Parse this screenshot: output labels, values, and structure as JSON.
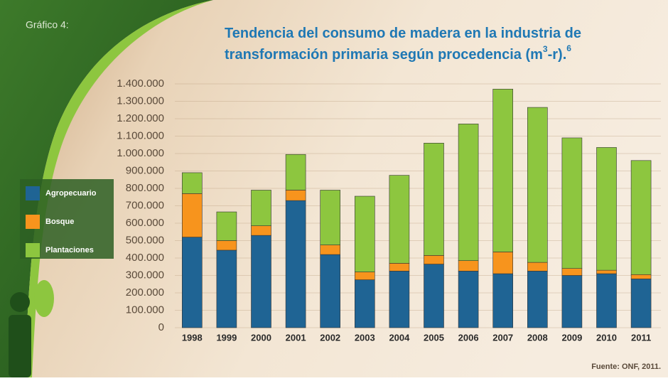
{
  "chart_data": {
    "type": "stacked-bar",
    "label": "Gráfico 4:",
    "title": [
      "Tendencia del consumo de madera en la industria de",
      "transformación primaria según procedencia (m",
      "3",
      "-r).",
      "6"
    ],
    "source": "Fuente: ONF, 2011.",
    "categories": [
      "1998",
      "1999",
      "2000",
      "2001",
      "2002",
      "2003",
      "2004",
      "2005",
      "2006",
      "2007",
      "2008",
      "2009",
      "2010",
      "2011"
    ],
    "series": [
      {
        "name": "Agropecuario",
        "color": "#1f6494",
        "values": [
          520000,
          445000,
          530000,
          730000,
          420000,
          275000,
          325000,
          365000,
          325000,
          310000,
          325000,
          300000,
          310000,
          280000
        ]
      },
      {
        "name": "Bosque",
        "color": "#f7941d",
        "values": [
          250000,
          55000,
          55000,
          60000,
          55000,
          45000,
          45000,
          50000,
          60000,
          125000,
          50000,
          40000,
          20000,
          25000
        ]
      },
      {
        "name": "Plantaciones",
        "color": "#8dc63f",
        "values": [
          120000,
          165000,
          205000,
          205000,
          315000,
          435000,
          505000,
          645000,
          785000,
          935000,
          890000,
          750000,
          705000,
          655000
        ]
      }
    ],
    "ylim": [
      0,
      1400000
    ],
    "yticks": [
      0,
      {
        "value": 100000,
        "label": "100.000"
      },
      {
        "value": 200000,
        "label": "200.000"
      },
      {
        "value": 300000,
        "label": "300.000"
      },
      {
        "value": 400000,
        "label": "400.000"
      },
      {
        "value": 500000,
        "label": "500.000"
      },
      {
        "value": 600000,
        "label": "600.000"
      },
      {
        "value": 700000,
        "label": "700.000"
      },
      {
        "value": 800000,
        "label": "800.000"
      },
      {
        "value": 900000,
        "label": "900.000"
      },
      {
        "value": 1000000,
        "label": "1.000.000"
      },
      {
        "value": 1100000,
        "label": "1.100.000"
      },
      {
        "value": 1200000,
        "label": "1.200.000"
      },
      {
        "value": 1300000,
        "label": "1.300.000"
      },
      {
        "value": 1400000,
        "label": "1.400.000"
      }
    ],
    "grid": true
  }
}
